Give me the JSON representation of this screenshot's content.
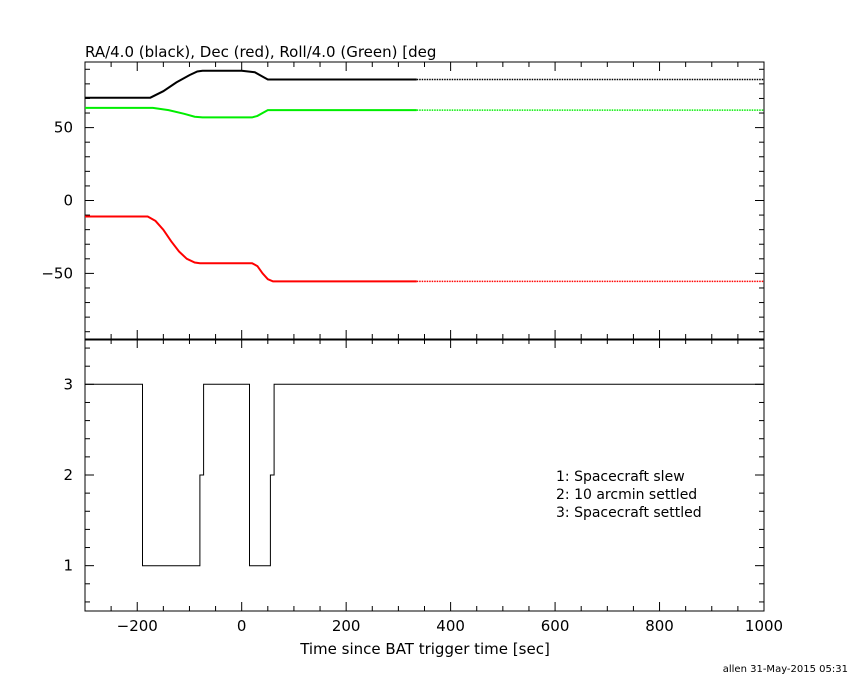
{
  "chart_data": [
    {
      "type": "line",
      "title": "RA/4.0 (black), Dec (red), Roll/4.0 (Green) [deg",
      "xlabel": "",
      "ylabel": "",
      "xlim": [
        -300,
        1000
      ],
      "ylim": [
        -95,
        95
      ],
      "yticks": [
        -50,
        0,
        50
      ],
      "yticks_labels": [
        "−50",
        "0",
        "50"
      ],
      "grid": false,
      "series": [
        {
          "color": "#000000",
          "solid_until_x": 335,
          "x": [
            -300,
            -175,
            -150,
            -125,
            -100,
            -85,
            -75,
            0,
            25,
            40,
            50,
            335,
            1000
          ],
          "y": [
            70.5,
            70.5,
            75,
            81,
            86,
            88.5,
            89,
            89,
            88,
            85,
            83,
            83,
            83
          ]
        },
        {
          "color": "#00ee00",
          "solid_until_x": 335,
          "x": [
            -300,
            -170,
            -140,
            -110,
            -90,
            -75,
            20,
            30,
            40,
            50,
            335,
            1000
          ],
          "y": [
            63.5,
            63.5,
            62,
            59.5,
            57.5,
            57,
            57,
            58,
            60,
            62,
            62,
            62
          ]
        },
        {
          "color": "#ff0000",
          "solid_until_x": 335,
          "x": [
            -300,
            -180,
            -165,
            -150,
            -135,
            -120,
            -105,
            -90,
            -80,
            20,
            30,
            40,
            50,
            60,
            335,
            1000
          ],
          "y": [
            -11,
            -11,
            -14,
            -20,
            -28,
            -35,
            -40,
            -42.5,
            -43,
            -43,
            -45,
            -50,
            -54,
            -55.5,
            -55.5,
            -55.5
          ]
        }
      ]
    },
    {
      "type": "line",
      "title": "",
      "xlabel": "Time since BAT trigger time [sec]",
      "ylabel": "",
      "xlim": [
        -300,
        1000
      ],
      "ylim": [
        0.5,
        3.5
      ],
      "yticks": [
        1,
        2,
        3
      ],
      "xticks": [
        -200,
        0,
        200,
        400,
        600,
        800,
        1000
      ],
      "xticks_labels": [
        "−200",
        "0",
        "200",
        "400",
        "600",
        "800",
        "1000"
      ],
      "grid": false,
      "series": [
        {
          "color": "#000000",
          "step": true,
          "x": [
            -300,
            -190,
            -80,
            -73,
            15,
            55,
            62,
            1000
          ],
          "y": [
            3,
            1,
            2,
            3,
            1,
            2,
            3,
            3
          ]
        }
      ],
      "annotations": [
        "1: Spacecraft slew",
        "2: 10 arcmin settled",
        "3: Spacecraft settled"
      ]
    }
  ],
  "footer": "allen 31-May-2015 05:31"
}
